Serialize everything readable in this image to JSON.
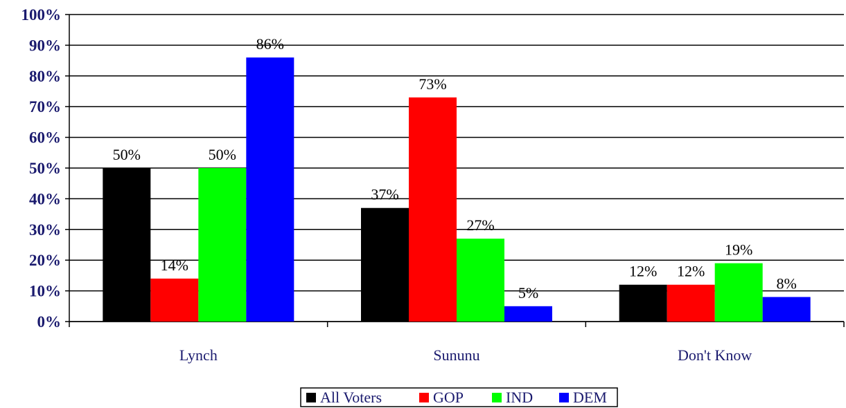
{
  "chart_data": {
    "type": "bar",
    "categories": [
      "Lynch",
      "Sununu",
      "Don't Know"
    ],
    "series": [
      {
        "name": "All Voters",
        "color": "#000000",
        "values": [
          50,
          37,
          12
        ],
        "labels": [
          "50%",
          "37%",
          "12%"
        ]
      },
      {
        "name": "GOP",
        "color": "#ff0000",
        "values": [
          14,
          73,
          12
        ],
        "labels": [
          "14%",
          "73%",
          "12%"
        ]
      },
      {
        "name": "IND",
        "color": "#00ff00",
        "values": [
          50,
          27,
          19
        ],
        "labels": [
          "50%",
          "27%",
          "19%"
        ]
      },
      {
        "name": "DEM",
        "color": "#0000ff",
        "values": [
          86,
          5,
          8
        ],
        "labels": [
          "86%",
          "5%",
          "8%"
        ]
      }
    ],
    "ylim": [
      0,
      100
    ],
    "yticks": [
      0,
      10,
      20,
      30,
      40,
      50,
      60,
      70,
      80,
      90,
      100
    ],
    "ytick_labels": [
      "0%",
      "10%",
      "20%",
      "30%",
      "40%",
      "50%",
      "60%",
      "70%",
      "80%",
      "90%",
      "100%"
    ],
    "grid": true,
    "legend_position": "bottom-center",
    "title": "",
    "xlabel": "",
    "ylabel": ""
  }
}
